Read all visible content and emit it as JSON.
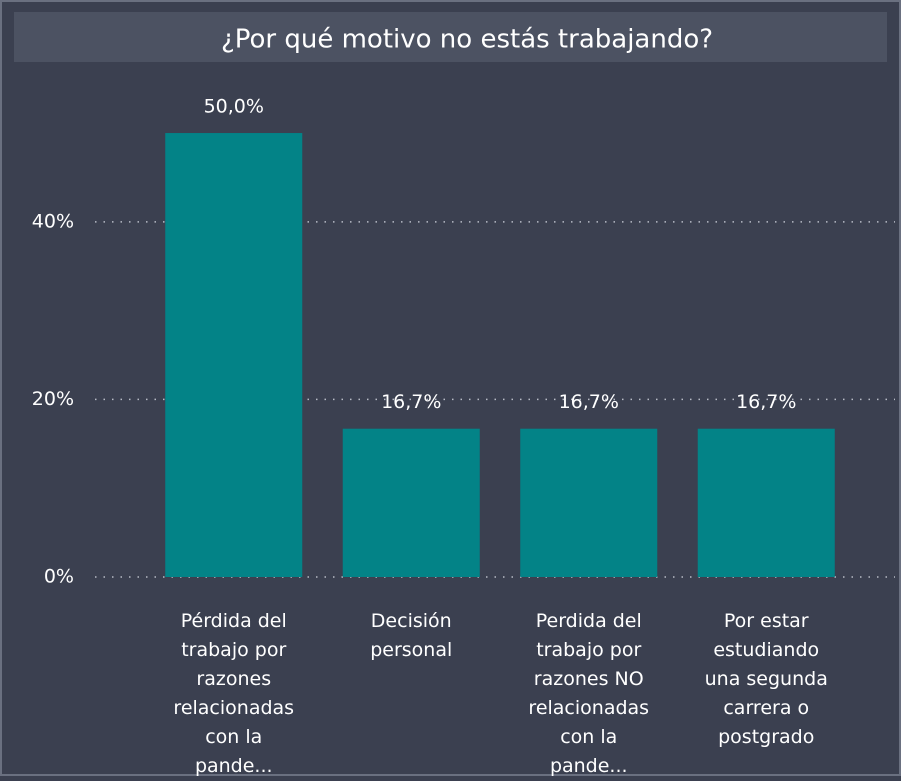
{
  "chart_data": {
    "type": "bar",
    "title": "¿Por qué motivo no estás trabajando?",
    "categories": [
      "Pérdida del trabajo por razones relacionadas con la pande...",
      "Decisión personal",
      "Perdida del trabajo por razones NO relacionadas con la pande...",
      "Por estar estudiando una segunda carrera o postgrado"
    ],
    "values": [
      50.0,
      16.7,
      16.7,
      16.7
    ],
    "value_labels": [
      "50,0%",
      "16,7%",
      "16,7%",
      "16,7%"
    ],
    "color": "#038387",
    "ylim": [
      0,
      58
    ],
    "yticks": [
      {
        "value": 0,
        "label": "0%"
      },
      {
        "value": 20,
        "label": "20%"
      },
      {
        "value": 40,
        "label": "40%"
      }
    ],
    "grid": true
  }
}
